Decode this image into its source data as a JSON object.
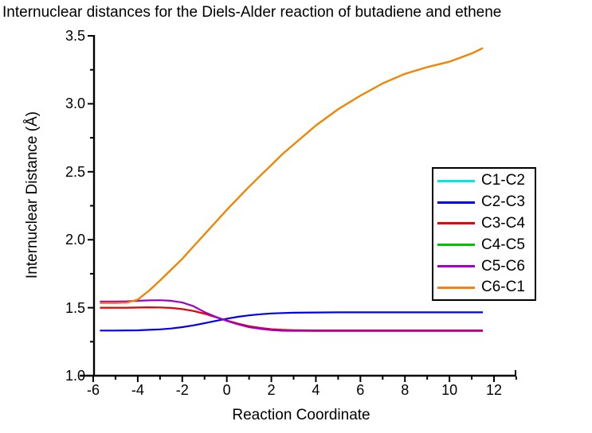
{
  "chart_data": {
    "type": "line",
    "title": "Internuclear distances for the Diels-Alder reaction of butadiene and ethene",
    "xlabel": "Reaction Coordinate",
    "ylabel": "Internuclear Distance (Å)",
    "xlim": [
      -6.5,
      13
    ],
    "ylim": [
      1.0,
      3.5
    ],
    "grid": false,
    "legend_position": "right-middle",
    "x_tick_labels": [
      "-6",
      "-4",
      "-2",
      "0",
      "2",
      "4",
      "6",
      "8",
      "10",
      "12"
    ],
    "x_tick_values": [
      -6,
      -4,
      -2,
      0,
      2,
      4,
      6,
      8,
      10,
      12
    ],
    "x_minor_tick_values": [
      -5,
      -3,
      -1,
      1,
      3,
      5,
      7,
      9,
      11,
      13
    ],
    "y_tick_labels": [
      "1.0",
      "1.5",
      "2.0",
      "2.5",
      "3.0",
      "3.5"
    ],
    "y_tick_values": [
      1.0,
      1.5,
      2.0,
      2.5,
      3.0,
      3.5
    ],
    "y_minor_tick_values": [
      1.25,
      1.75,
      2.25,
      2.75,
      3.25
    ],
    "x": [
      -5.7,
      -5,
      -4.5,
      -4,
      -3.5,
      -3,
      -2.5,
      -2,
      -1.5,
      -1,
      -0.5,
      0,
      0.5,
      1,
      1.5,
      2,
      2.5,
      3,
      4,
      5,
      6,
      7,
      8,
      9,
      10,
      10.5,
      11,
      11.5
    ],
    "series": [
      {
        "name": "C1-C2",
        "color": "#00e8e8",
        "values": [
          1.5,
          1.5,
          1.5,
          1.501,
          1.503,
          1.502,
          1.498,
          1.49,
          1.476,
          1.456,
          1.431,
          1.406,
          1.383,
          1.364,
          1.351,
          1.342,
          1.337,
          1.335,
          1.333,
          1.333,
          1.333,
          1.333,
          1.333,
          1.333,
          1.333,
          1.333,
          1.333,
          1.333
        ]
      },
      {
        "name": "C2-C3",
        "color": "#0000ee",
        "values": [
          1.332,
          1.332,
          1.333,
          1.334,
          1.337,
          1.341,
          1.347,
          1.357,
          1.37,
          1.386,
          1.403,
          1.419,
          1.433,
          1.444,
          1.452,
          1.458,
          1.461,
          1.463,
          1.465,
          1.466,
          1.466,
          1.466,
          1.466,
          1.466,
          1.466,
          1.466,
          1.466,
          1.466
        ]
      },
      {
        "name": "C3-C4",
        "color": "#ee0000",
        "values": [
          1.5,
          1.5,
          1.5,
          1.501,
          1.503,
          1.502,
          1.498,
          1.49,
          1.476,
          1.456,
          1.431,
          1.406,
          1.383,
          1.364,
          1.351,
          1.342,
          1.337,
          1.335,
          1.333,
          1.333,
          1.333,
          1.333,
          1.333,
          1.333,
          1.333,
          1.333,
          1.333,
          1.333
        ]
      },
      {
        "name": "C4-C5",
        "color": "#00c400",
        "values": [
          1.535,
          1.535,
          1.537,
          1.56,
          1.625,
          1.7,
          1.78,
          1.86,
          1.95,
          2.04,
          2.13,
          2.22,
          2.305,
          2.39,
          2.47,
          2.55,
          2.63,
          2.7,
          2.84,
          2.96,
          3.06,
          3.15,
          3.22,
          3.27,
          3.31,
          3.34,
          3.37,
          3.41
        ]
      },
      {
        "name": "C5-C6",
        "color": "#9e00c8",
        "values": [
          1.545,
          1.545,
          1.547,
          1.551,
          1.554,
          1.555,
          1.551,
          1.538,
          1.512,
          1.468,
          1.433,
          1.403,
          1.378,
          1.357,
          1.344,
          1.336,
          1.331,
          1.33,
          1.329,
          1.329,
          1.329,
          1.329,
          1.329,
          1.329,
          1.329,
          1.329,
          1.329,
          1.329
        ]
      },
      {
        "name": "C6-C1",
        "color": "#ff8000",
        "values": [
          1.535,
          1.535,
          1.537,
          1.56,
          1.625,
          1.7,
          1.78,
          1.86,
          1.95,
          2.04,
          2.13,
          2.22,
          2.305,
          2.39,
          2.47,
          2.55,
          2.63,
          2.7,
          2.84,
          2.96,
          3.06,
          3.15,
          3.22,
          3.27,
          3.31,
          3.34,
          3.37,
          3.41
        ]
      }
    ]
  }
}
